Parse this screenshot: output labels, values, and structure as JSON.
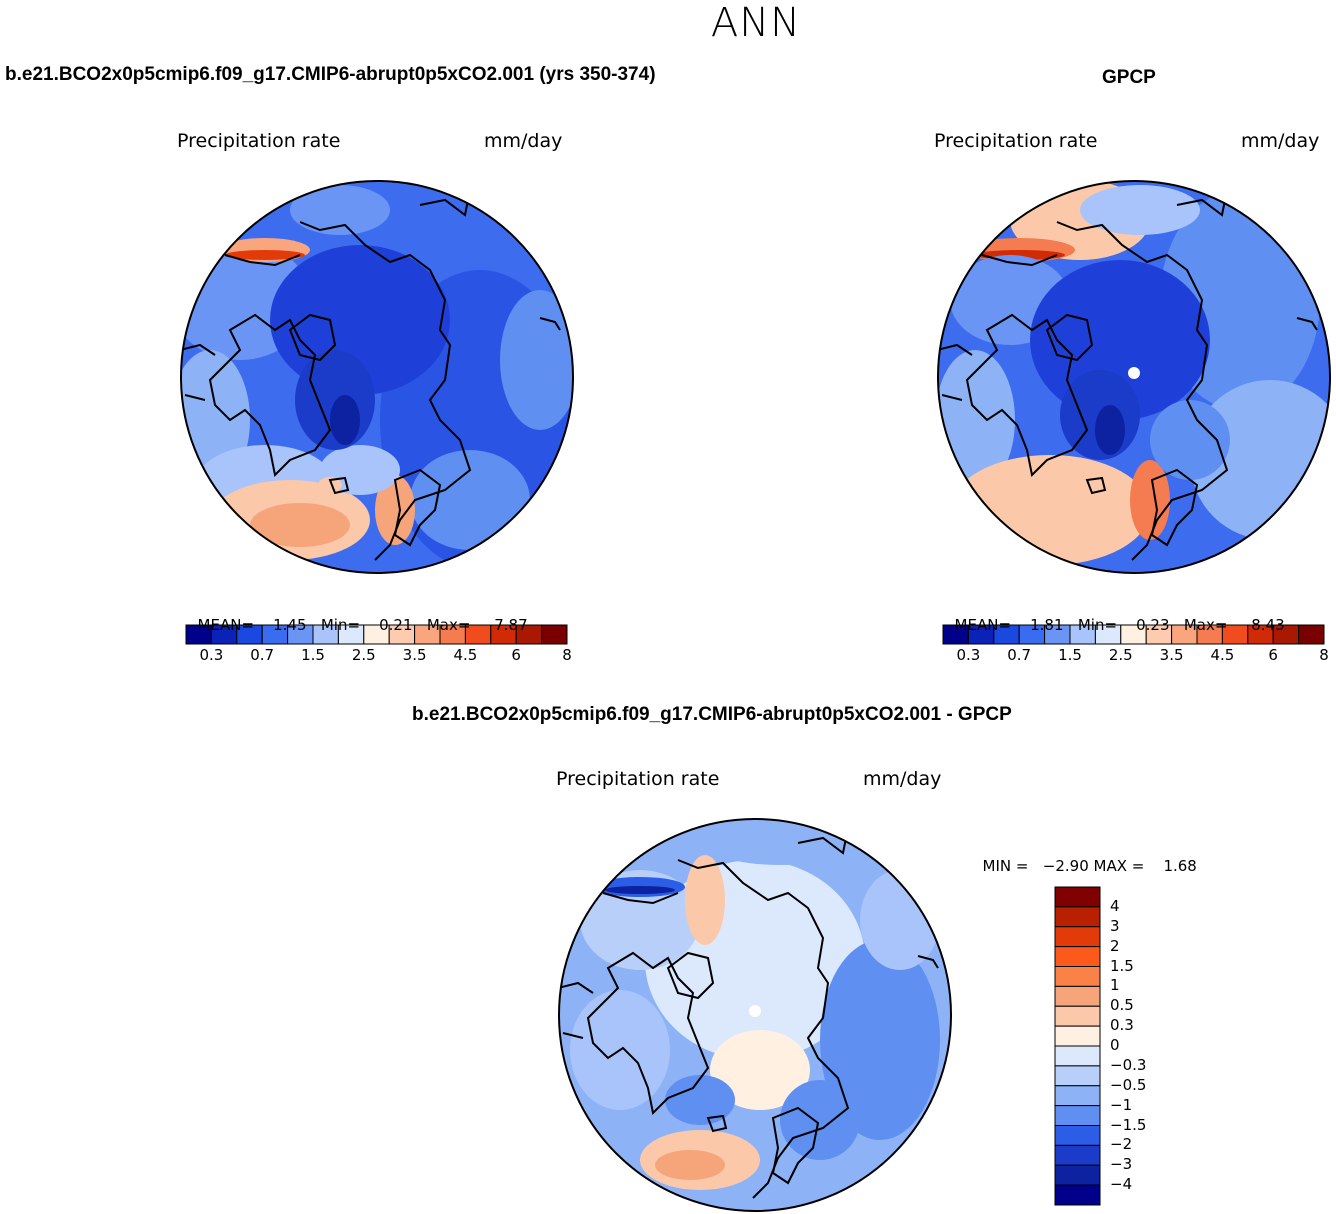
{
  "title": "ANN",
  "panels": [
    {
      "case_title": "b.e21.BCO2x0p5cmip6.f09_g17.CMIP6-abrupt0p5xCO2.001 (yrs 350-374)",
      "variable": "Precipitation rate",
      "units": "mm/day",
      "stats": {
        "mean_label": "MEAN=",
        "mean": "1.45",
        "min_label": "Min=",
        "min": "0.21",
        "max_label": "Max=",
        "max": "7.87"
      }
    },
    {
      "case_title": "GPCP",
      "variable": "Precipitation rate",
      "units": "mm/day",
      "stats": {
        "mean_label": "MEAN=",
        "mean": "1.81",
        "min_label": "Min=",
        "min": "0.23",
        "max_label": "Max=",
        "max": "8.43"
      }
    },
    {
      "case_title": "b.e21.BCO2x0p5cmip6.f09_g17.CMIP6-abrupt0p5xCO2.001 - GPCP",
      "variable": "Precipitation rate",
      "units": "mm/day",
      "stats": {
        "min_label": "MIN =",
        "min": "−2.90",
        "max_label": "MAX =",
        "max": "1.68"
      }
    }
  ],
  "colorbar_abs": {
    "colors": [
      "#00008b",
      "#0a22b8",
      "#1a48e0",
      "#3a6cf0",
      "#6a95f5",
      "#a8c4fa",
      "#dce9fd",
      "#fff0e2",
      "#fdccb0",
      "#f9a67e",
      "#f47c50",
      "#f04c1e",
      "#d02a06",
      "#a91800",
      "#7a0000"
    ],
    "ticks": [
      "0.3",
      "0.7",
      "1.5",
      "2.5",
      "3.5",
      "4.5",
      "6",
      "8"
    ]
  },
  "colorbar_diff": {
    "colors": [
      "#800000",
      "#b82000",
      "#e33a0a",
      "#fb5a1c",
      "#fa8248",
      "#f6a57a",
      "#fcc8aa",
      "#fff0e2",
      "#dce9fd",
      "#b8cffa",
      "#8eb2f6",
      "#5f8ff0",
      "#2b5de6",
      "#1a3cc8",
      "#0c22a0",
      "#00008b"
    ],
    "ticks": [
      "4",
      "3",
      "2",
      "1.5",
      "1",
      "0.5",
      "0.3",
      "0",
      "−0.3",
      "−0.5",
      "−1",
      "−1.5",
      "−2",
      "−3",
      "−4"
    ]
  },
  "map_colors": {
    "ocean_deep_blue": "#1e40d8",
    "mid_blue": "#3d6cef",
    "light_blue": "#9bbcf7",
    "pale": "#dce9fd",
    "salmon": "#f8b496",
    "red": "#e8431a",
    "coastline": "#000000"
  }
}
